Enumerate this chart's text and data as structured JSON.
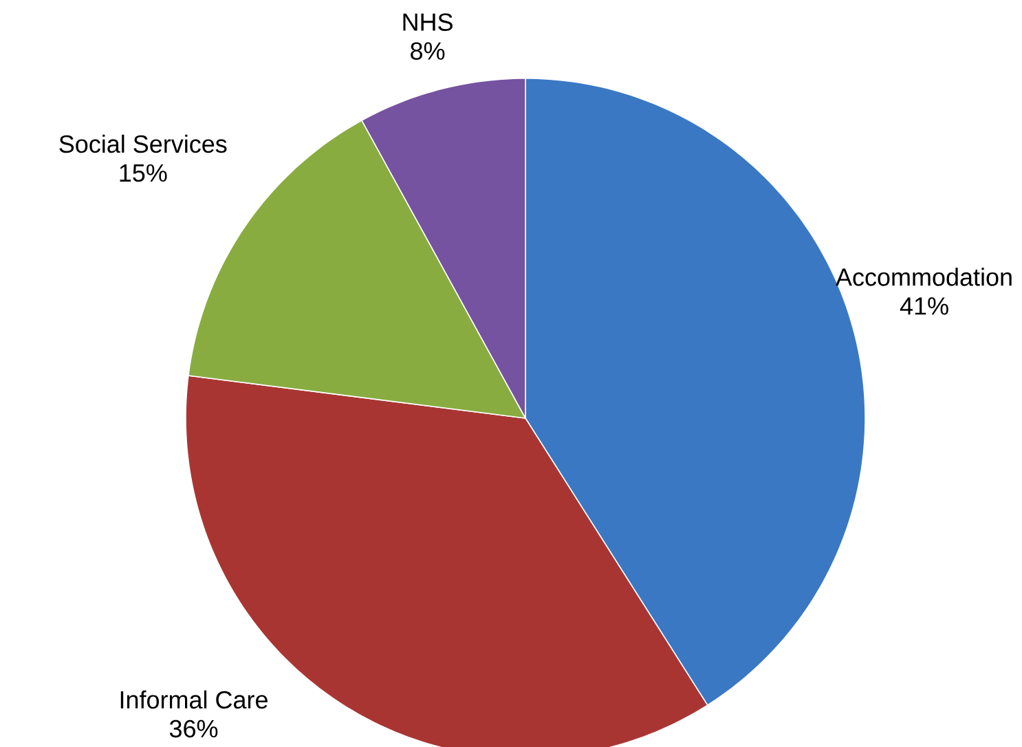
{
  "chart_data": {
    "type": "pie",
    "categories": [
      "Accommodation",
      "Informal Care",
      "Social Services",
      "NHS"
    ],
    "values": [
      41,
      36,
      15,
      8
    ],
    "value_labels": [
      "41%",
      "36%",
      "15%",
      "8%"
    ],
    "colors": [
      "#3a78c4",
      "#a93532",
      "#89ac40",
      "#7553a0"
    ]
  }
}
